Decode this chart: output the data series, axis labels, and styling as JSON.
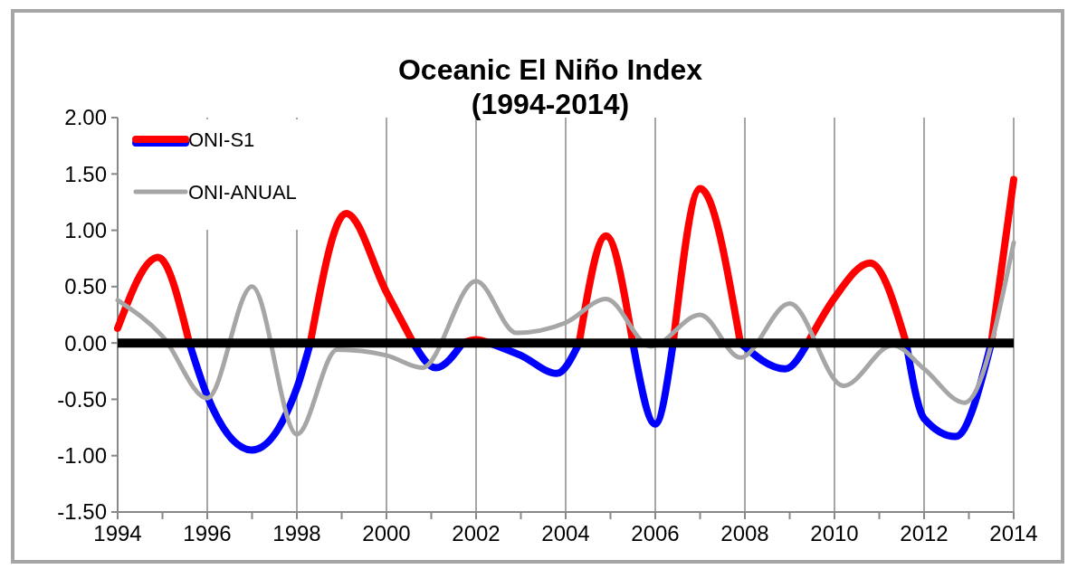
{
  "chart_data": {
    "type": "line",
    "title": "Oceanic El Niño Index\n(1994-2014)",
    "series": [
      {
        "name": "ONI-S1",
        "color": "#ff0000",
        "x": [
          1994,
          1994.9,
          1995.6,
          1996,
          1997,
          1998,
          1998.3,
          1999.1,
          2000,
          2000.6,
          2001.1,
          2001.7,
          2002,
          2002.3,
          2003,
          2003.8,
          2004.3,
          2004.9,
          2005.5,
          2006,
          2006.4,
          2007,
          2007.9,
          2008.9,
          2009.4,
          2010,
          2010.8,
          2011.6,
          2012,
          2012.7,
          2013.5,
          2014
        ],
        "values": [
          0.13,
          0.76,
          0,
          null,
          null,
          null,
          0,
          1.15,
          0.45,
          0,
          null,
          0,
          0.03,
          0,
          null,
          null,
          0,
          0.95,
          0,
          null,
          0,
          1.37,
          0,
          null,
          0,
          0.4,
          0.71,
          0,
          null,
          null,
          0,
          1.45
        ]
      },
      {
        "color": "#0000ff",
        "x": [
          1995.6,
          1996,
          1997,
          1998,
          1998.3,
          1999.1,
          2000,
          2000.6,
          2001.1,
          2001.7,
          2002,
          2002.3,
          2003,
          2003.8,
          2004.3,
          2004.9,
          2005.5,
          2006,
          2006.4,
          2007,
          2007.9,
          2008.9,
          2009.4,
          2010,
          2010.8,
          2011.6,
          2012,
          2012.7,
          2013.5
        ],
        "values": [
          0,
          -0.47,
          -0.95,
          -0.4,
          0,
          null,
          null,
          0,
          -0.22,
          0,
          null,
          0,
          -0.11,
          -0.27,
          0,
          null,
          0,
          -0.72,
          0,
          null,
          0,
          -0.23,
          0,
          null,
          null,
          0,
          -0.67,
          -0.83,
          0
        ]
      },
      {
        "name": "ONI-ANUAL",
        "color": "#a6a6a6",
        "x": [
          1994,
          1995,
          1996,
          1997,
          1998,
          1998.9,
          2000,
          2000.8,
          2002,
          2002.9,
          2004,
          2004.9,
          2005.9,
          2007,
          2007.9,
          2009,
          2010.2,
          2011.3,
          2012,
          2012.9,
          2014
        ],
        "values": [
          0.38,
          0.06,
          -0.49,
          0.5,
          -0.81,
          -0.06,
          -0.11,
          -0.22,
          0.55,
          0.09,
          0.18,
          0.39,
          -0.03,
          0.25,
          -0.13,
          0.35,
          -0.38,
          -0.02,
          -0.23,
          -0.53,
          0.89
        ]
      }
    ],
    "xlim": [
      1994,
      2014
    ],
    "xticks": [
      1994,
      {
        "value": 1995,
        "label": null
      },
      1996,
      {
        "value": 1997,
        "label": null
      },
      1998,
      {
        "value": 1999,
        "label": null
      },
      2000,
      {
        "value": 2001,
        "label": null
      },
      2002,
      {
        "value": 2003,
        "label": null
      },
      2004,
      {
        "value": 2005,
        "label": null
      },
      2006,
      {
        "value": 2007,
        "label": null
      },
      2008,
      {
        "value": 2009,
        "label": null
      },
      2010,
      {
        "value": 2011,
        "label": null
      },
      2012,
      {
        "value": 2013,
        "label": null
      },
      2014
    ],
    "ylim": [
      -1.5,
      2
    ],
    "yticks": [
      {
        "value": -1.5,
        "label": "-1.50"
      },
      {
        "value": -1,
        "label": "-1.00"
      },
      {
        "value": -0.5,
        "label": "-0.50"
      },
      {
        "value": 0,
        "label": "0.00"
      },
      {
        "value": 0.5,
        "label": "0.50"
      },
      {
        "value": 1,
        "label": "1.00"
      },
      {
        "value": 1.5,
        "label": "1.50"
      },
      {
        "value": 2,
        "label": "2.00"
      }
    ],
    "ref_lines": [
      {
        "axis": "y",
        "value": 0,
        "color": "#000000"
      }
    ],
    "grid": "x",
    "legend": "top left",
    "line_style": "solid"
  }
}
